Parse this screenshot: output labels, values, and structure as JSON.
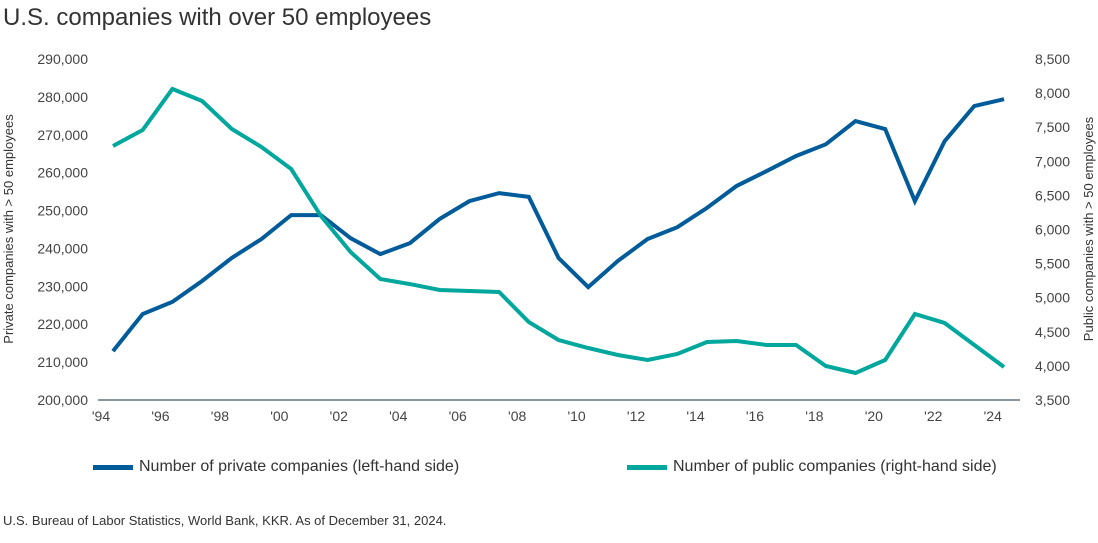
{
  "title": "U.S. companies with over 50 employees",
  "source": "U.S. Bureau of Labor Statistics, World Bank, KKR. As of December 31, 2024.",
  "chart_data": {
    "type": "line",
    "title": "U.S. companies with over 50 employees",
    "x": [
      1994,
      1995,
      1996,
      1997,
      1998,
      1999,
      2000,
      2001,
      2002,
      2003,
      2004,
      2005,
      2006,
      2007,
      2008,
      2009,
      2010,
      2011,
      2012,
      2013,
      2014,
      2015,
      2016,
      2017,
      2018,
      2019,
      2020,
      2021,
      2022,
      2023,
      2024
    ],
    "xticks": [
      "'94",
      "'96",
      "'98",
      "'00",
      "'02",
      "'04",
      "'06",
      "'08",
      "'10",
      "'12",
      "'14",
      "'16",
      "'18",
      "'20",
      "'22",
      "'24"
    ],
    "ylabel_left": "Private companies with > 50 employees",
    "ylabel_right": "Public companies with > 50 employees",
    "ylim_left": [
      200000,
      290000
    ],
    "ylim_right": [
      3500,
      8500
    ],
    "yticks_left": [
      "200,000",
      "210,000",
      "220,000",
      "230,000",
      "240,000",
      "250,000",
      "260,000",
      "270,000",
      "280,000",
      "290,000"
    ],
    "yticks_right": [
      "3,500",
      "4,000",
      "4,500",
      "5,000",
      "5,500",
      "6,000",
      "6,500",
      "7,000",
      "7,500",
      "8,000",
      "8,500"
    ],
    "grid": false,
    "legend_position": "bottom",
    "series": [
      {
        "name": "Number of private companies (left-hand side)",
        "axis": "left",
        "color": "#005b9a",
        "values": [
          212900,
          222700,
          225900,
          231400,
          237500,
          242500,
          248800,
          248800,
          242700,
          238500,
          241400,
          247800,
          252500,
          254600,
          253600,
          237500,
          229800,
          236700,
          242500,
          245600,
          250700,
          256500,
          260400,
          264400,
          267500,
          273600,
          271500,
          252500,
          268300,
          277600,
          279400
        ]
      },
      {
        "name": "Number of public companies (right-hand side)",
        "axis": "right",
        "color": "#00a79d",
        "values": [
          7224,
          7459,
          8060,
          7884,
          7473,
          7210,
          6887,
          6198,
          5670,
          5274,
          5200,
          5113,
          5098,
          5084,
          4644,
          4380,
          4262,
          4160,
          4086,
          4174,
          4350,
          4365,
          4306,
          4306,
          3998,
          3896,
          4086,
          4761,
          4629,
          4306,
          3984
        ]
      }
    ]
  }
}
